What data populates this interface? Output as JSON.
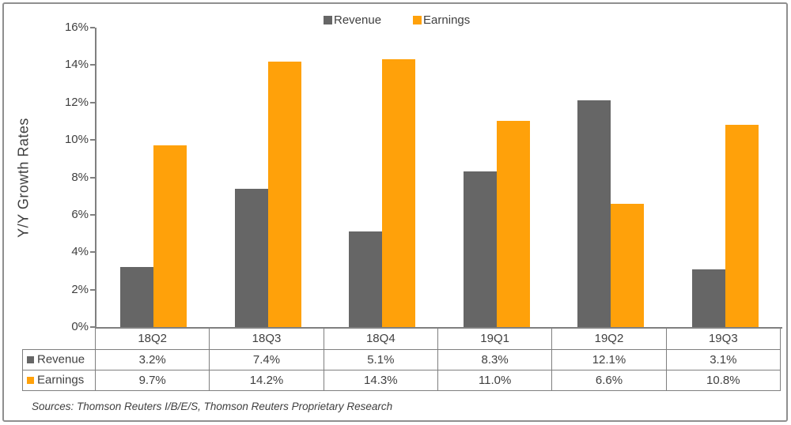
{
  "chart_data": {
    "type": "bar",
    "title": "",
    "ylabel": "Y/Y Growth Rates",
    "xlabel": "",
    "ylim": [
      0,
      16
    ],
    "y_ticks": [
      "16%",
      "14%",
      "12%",
      "10%",
      "8%",
      "6%",
      "4%",
      "2%",
      "0%"
    ],
    "grid": false,
    "legend_position": "top-center",
    "categories": [
      "18Q2",
      "18Q3",
      "18Q4",
      "19Q1",
      "19Q2",
      "19Q3"
    ],
    "series": [
      {
        "name": "Revenue",
        "color": "#666666",
        "values": [
          3.2,
          7.4,
          5.1,
          8.3,
          12.1,
          3.1
        ],
        "labels": [
          "3.2%",
          "7.4%",
          "5.1%",
          "8.3%",
          "12.1%",
          "3.1%"
        ]
      },
      {
        "name": "Earnings",
        "color": "#FFA10A",
        "values": [
          9.7,
          14.2,
          14.3,
          11.0,
          6.6,
          10.8
        ],
        "labels": [
          "9.7%",
          "14.2%",
          "14.3%",
          "11.0%",
          "6.6%",
          "10.8%"
        ]
      }
    ]
  },
  "source_note": "Sources: Thomson Reuters I/B/E/S, Thomson Reuters Proprietary Research",
  "colors": {
    "revenue_bar": "#666666",
    "earnings_bar": "#FFA10A",
    "axis_line": "#808080",
    "table_border": "#7f7f7f",
    "text": "#404040",
    "frame_border": "#8f8f8f",
    "background": "#ffffff"
  }
}
